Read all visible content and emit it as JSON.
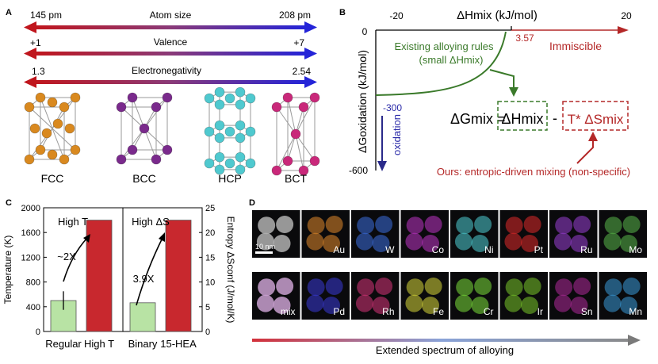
{
  "panelA": {
    "label": "A",
    "arrows": [
      {
        "title": "Atom size",
        "left": "145 pm",
        "right": "208 pm"
      },
      {
        "title": "Valence",
        "left": "+1",
        "right": "+7"
      },
      {
        "title": "Electronegativity",
        "left": "1.3",
        "right": "2.54"
      }
    ],
    "structures": [
      {
        "name": "FCC",
        "color": "#d9891f"
      },
      {
        "name": "BCC",
        "color": "#7a2a8c"
      },
      {
        "name": "HCP",
        "color": "#4fc9cf"
      },
      {
        "name": "BCT",
        "color": "#c9287a"
      }
    ]
  },
  "panelB": {
    "label": "B",
    "xaxis_label": "ΔHmix (kJ/mol)",
    "x_ticks": [
      "-20",
      "0",
      "20"
    ],
    "yaxis_label": "ΔGoxidation (kJ/mol)",
    "y_ticks": [
      "0",
      "-300",
      "-600"
    ],
    "existing_rules_line1": "Existing alloying rules",
    "existing_rules_line2": "(small ΔHmix)",
    "threshold_value": "3.57",
    "immiscible": "Immiscible",
    "oxidation": "oxidation",
    "equation_lhs": "ΔGmix = ",
    "equation_term1": "ΔHmix",
    "equation_minus": "-",
    "equation_term2": "T* ΔSmix",
    "ours": "Ours: entropic-driven mixing (non-specific)"
  },
  "panelC": {
    "label": "C",
    "left_annotation": "High T",
    "right_annotation": "High ΔS",
    "left_factor": "~2X",
    "right_factor": "3.9X",
    "ylabel_left": "Temperature (K)",
    "ylabel_right": "Entropy ΔSconf (J/mol/K)",
    "left_ticks": [
      "2000",
      "1600",
      "1200",
      "800",
      "400",
      "0"
    ],
    "right_ticks": [
      "25",
      "20",
      "15",
      "10",
      "5",
      "0"
    ]
  },
  "chart_data": [
    {
      "type": "bar",
      "categories": [
        "Regular",
        "High T"
      ],
      "values": [
        500,
        1800
      ],
      "error": [
        150,
        0
      ],
      "ylabel": "Temperature (K)",
      "ylim": [
        0,
        2000
      ],
      "colors": [
        "#b8e3a4",
        "#c8282e"
      ]
    },
    {
      "type": "bar",
      "categories": [
        "Binary",
        "15-HEA"
      ],
      "values": [
        5.8,
        22.5
      ],
      "ylabel": "Entropy ΔSconf (J/mol/K)",
      "ylim": [
        0,
        25
      ],
      "colors": [
        "#b8e3a4",
        "#c8282e"
      ]
    }
  ],
  "panelD": {
    "label": "D",
    "scale_bar": "10 nm",
    "row1": [
      {
        "label": "",
        "color": "#b0b0b0"
      },
      {
        "label": "Au",
        "color": "#e38a2c"
      },
      {
        "label": "W",
        "color": "#3c6fe0"
      },
      {
        "label": "Co",
        "color": "#c035c6"
      },
      {
        "label": "Ni",
        "color": "#4fd0d6"
      },
      {
        "label": "Pt",
        "color": "#e02a2a"
      },
      {
        "label": "Ru",
        "color": "#9b3fd6"
      },
      {
        "label": "Mo",
        "color": "#5ab84a"
      }
    ],
    "row2": [
      {
        "label": "mix",
        "color": "#c9a0d0"
      },
      {
        "label": "Pd",
        "color": "#3a3ad8"
      },
      {
        "label": "Rh",
        "color": "#d8357a"
      },
      {
        "label": "Fe",
        "color": "#d8d83a"
      },
      {
        "label": "Cr",
        "color": "#7be03a"
      },
      {
        "label": "Ir",
        "color": "#7ac82a"
      },
      {
        "label": "Sn",
        "color": "#b02a9a"
      },
      {
        "label": "Mn",
        "color": "#3a9ad8"
      }
    ],
    "spectrum": "Extended spectrum of alloying"
  }
}
